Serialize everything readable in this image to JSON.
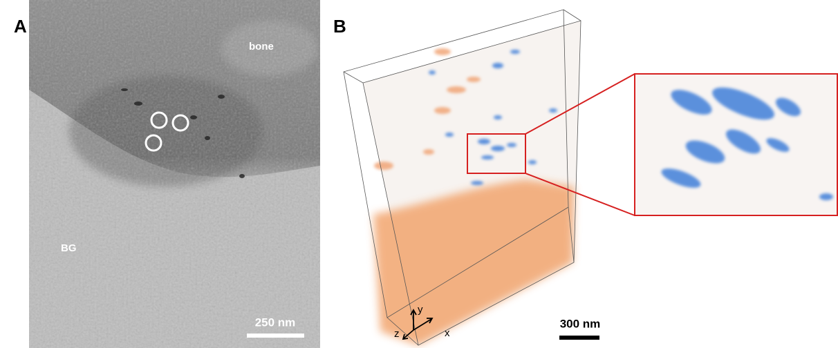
{
  "panel_a": {
    "label": "A",
    "annotations": [
      "bone",
      "BG"
    ],
    "scale_bar": "250 nm"
  },
  "panel_b": {
    "label": "B",
    "axes": [
      "y",
      "z",
      "x"
    ],
    "scale_bar": "300 nm"
  }
}
